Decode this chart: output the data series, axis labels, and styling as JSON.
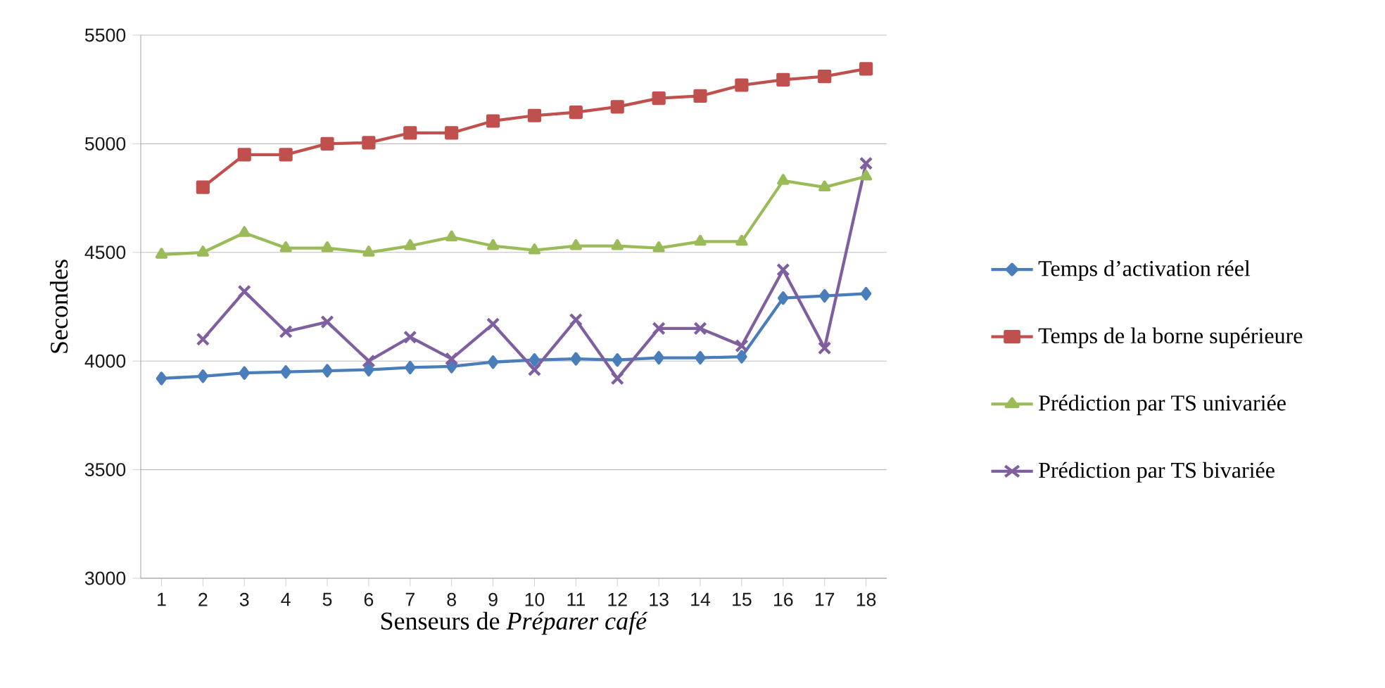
{
  "chart_data": {
    "type": "line",
    "xlabel": "Senseurs de *Préparer café*",
    "ylabel": "Secondes",
    "categories": [
      "1",
      "2",
      "3",
      "4",
      "5",
      "6",
      "7",
      "8",
      "9",
      "10",
      "11",
      "12",
      "13",
      "14",
      "15",
      "16",
      "17",
      "18"
    ],
    "ylim": [
      3000,
      5500
    ],
    "yticks": [
      3000,
      3500,
      4000,
      4500,
      5000,
      5500
    ],
    "grid": "y",
    "legend": "right",
    "series": [
      {
        "name": "Temps d’activation réel",
        "color": "#4a7ebb",
        "marker": "diamond",
        "values": [
          3920,
          3930,
          3945,
          3950,
          3955,
          3960,
          3970,
          3975,
          3995,
          4005,
          4010,
          4005,
          4015,
          4015,
          4020,
          4290,
          4300,
          4310
        ]
      },
      {
        "name": "Temps de la borne supérieure",
        "color": "#c0504d",
        "marker": "square",
        "values": [
          null,
          4800,
          4950,
          4950,
          5000,
          5005,
          5050,
          5050,
          5105,
          5130,
          5145,
          5170,
          5210,
          5220,
          5270,
          5295,
          5310,
          5345
        ]
      },
      {
        "name": "Prédiction par TS univariée",
        "color": "#9bbb59",
        "marker": "triangle",
        "values": [
          4490,
          4500,
          4590,
          4520,
          4520,
          4500,
          4530,
          4570,
          4530,
          4510,
          4530,
          4530,
          4520,
          4550,
          4550,
          4830,
          4800,
          4850
        ]
      },
      {
        "name": "Prédiction par TS bivariée",
        "color": "#7f5f9f",
        "marker": "cross",
        "values": [
          null,
          4100,
          4320,
          4135,
          4180,
          4000,
          4110,
          4010,
          4170,
          3960,
          4190,
          3920,
          4150,
          4150,
          4070,
          4420,
          4060,
          4910
        ]
      }
    ]
  }
}
